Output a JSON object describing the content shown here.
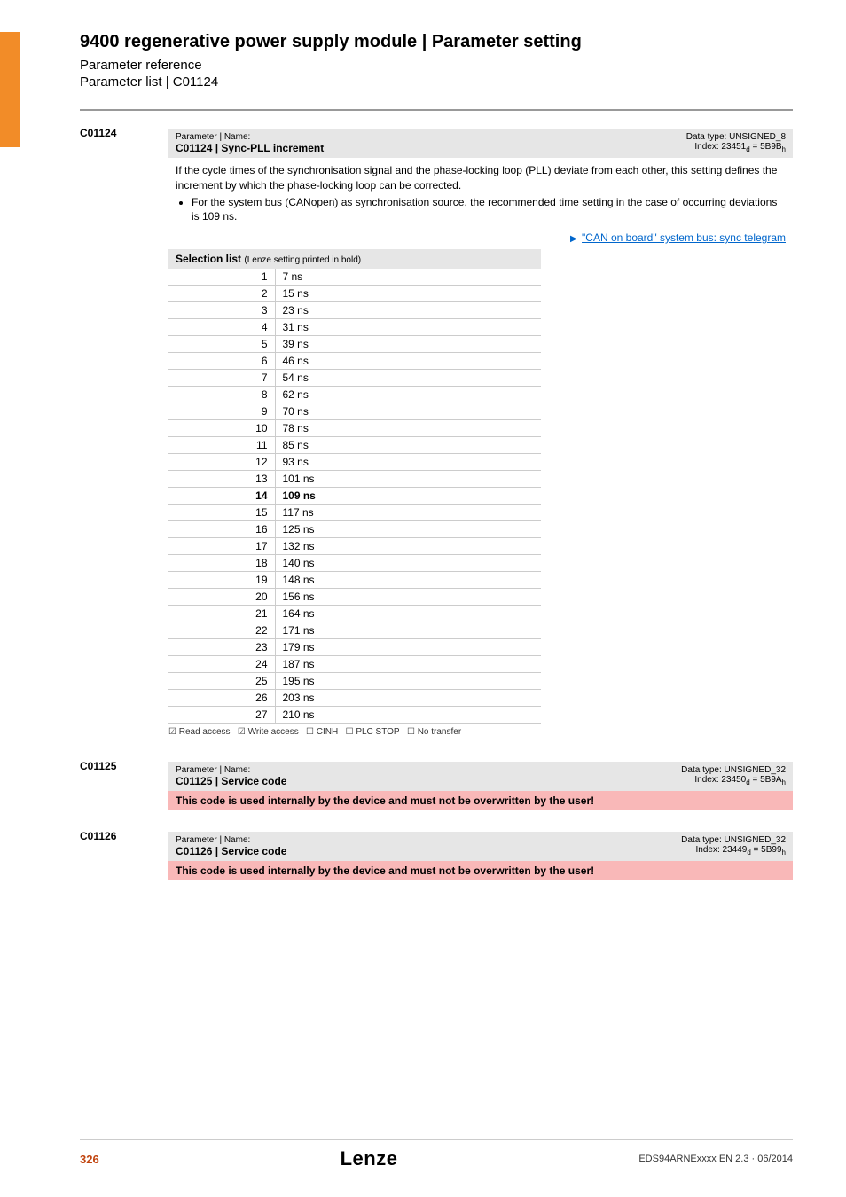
{
  "header": {
    "title": "9400 regenerative power supply module | Parameter setting",
    "subtitle": "Parameter reference",
    "subsubtitle": "Parameter list | C01124"
  },
  "params": [
    {
      "id": "C01124",
      "header_label": "Parameter | Name:",
      "name": "C01124 | Sync-PLL increment",
      "data_type": "Data type: UNSIGNED_8",
      "index": "Index: 23451",
      "index_sub_d": "d",
      "index_hex": " = 5B9B",
      "index_sub_h": "h",
      "desc_main": "If the cycle times of the synchronisation signal and the phase-locking loop (PLL) deviate from each other, this setting defines the increment by which the phase-locking loop can be corrected.",
      "desc_bullet": "For the system bus (CANopen) as synchronisation source, the recommended time setting in the case of occurring deviations is 109 ns.",
      "link_text": "\"CAN on board\" system bus: sync telegram",
      "selection_header_main": "Selection list ",
      "selection_header_sub": "(Lenze setting printed in bold)",
      "selection": [
        {
          "k": "1",
          "v": "7 ns",
          "bold": false
        },
        {
          "k": "2",
          "v": "15 ns",
          "bold": false
        },
        {
          "k": "3",
          "v": "23 ns",
          "bold": false
        },
        {
          "k": "4",
          "v": "31 ns",
          "bold": false
        },
        {
          "k": "5",
          "v": "39 ns",
          "bold": false
        },
        {
          "k": "6",
          "v": "46 ns",
          "bold": false
        },
        {
          "k": "7",
          "v": "54 ns",
          "bold": false
        },
        {
          "k": "8",
          "v": "62 ns",
          "bold": false
        },
        {
          "k": "9",
          "v": "70 ns",
          "bold": false
        },
        {
          "k": "10",
          "v": "78 ns",
          "bold": false
        },
        {
          "k": "11",
          "v": "85 ns",
          "bold": false
        },
        {
          "k": "12",
          "v": "93 ns",
          "bold": false
        },
        {
          "k": "13",
          "v": "101 ns",
          "bold": false
        },
        {
          "k": "14",
          "v": "109 ns",
          "bold": true
        },
        {
          "k": "15",
          "v": "117 ns",
          "bold": false
        },
        {
          "k": "16",
          "v": "125 ns",
          "bold": false
        },
        {
          "k": "17",
          "v": "132 ns",
          "bold": false
        },
        {
          "k": "18",
          "v": "140 ns",
          "bold": false
        },
        {
          "k": "19",
          "v": "148 ns",
          "bold": false
        },
        {
          "k": "20",
          "v": "156 ns",
          "bold": false
        },
        {
          "k": "21",
          "v": "164 ns",
          "bold": false
        },
        {
          "k": "22",
          "v": "171 ns",
          "bold": false
        },
        {
          "k": "23",
          "v": "179 ns",
          "bold": false
        },
        {
          "k": "24",
          "v": "187 ns",
          "bold": false
        },
        {
          "k": "25",
          "v": "195 ns",
          "bold": false
        },
        {
          "k": "26",
          "v": "203 ns",
          "bold": false
        },
        {
          "k": "27",
          "v": "210 ns",
          "bold": false
        }
      ],
      "access": {
        "read": "☑ Read access",
        "write": "☑ Write access",
        "cinh": "☐ CINH",
        "plcstop": "☐ PLC STOP",
        "notransfer": "☐ No transfer"
      }
    },
    {
      "id": "C01125",
      "header_label": "Parameter | Name:",
      "name": "C01125 | Service code",
      "data_type": "Data type: UNSIGNED_32",
      "index": "Index: 23450",
      "index_sub_d": "d",
      "index_hex": " = 5B9A",
      "index_sub_h": "h",
      "warning": "This code is used internally by the device and must not be overwritten by the user!"
    },
    {
      "id": "C01126",
      "header_label": "Parameter | Name:",
      "name": "C01126 | Service code",
      "data_type": "Data type: UNSIGNED_32",
      "index": "Index: 23449",
      "index_sub_d": "d",
      "index_hex": " = 5B99",
      "index_sub_h": "h",
      "warning": "This code is used internally by the device and must not be overwritten by the user!"
    }
  ],
  "footer": {
    "page": "326",
    "logo": "Lenze",
    "doc": "EDS94ARNExxxx EN 2.3 · 06/2014"
  },
  "style": {
    "accent": "#f28c28",
    "warn_bg": "#f9b8b8",
    "header_bg": "#e6e6e6",
    "border": "#cccccc",
    "link": "#0066cc",
    "page_num_color": "#c1440e"
  }
}
